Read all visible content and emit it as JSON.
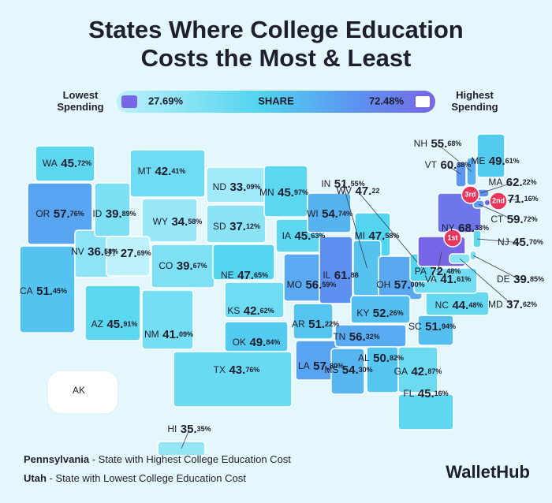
{
  "title_lines": [
    "States Where College Education",
    "Costs the Most & Least"
  ],
  "legend": {
    "low_label": "Lowest Spending",
    "low_value": 27.69,
    "low_value_label": "27.69%",
    "middle_label": "SHARE",
    "high_value": 72.48,
    "high_value_label": "72.48%",
    "high_label": "Highest Spending"
  },
  "states": [
    {
      "abbr": "WA",
      "value": 45.72,
      "value_label": "45.72%"
    },
    {
      "abbr": "OR",
      "value": 57.76,
      "value_label": "57.76%"
    },
    {
      "abbr": "CA",
      "value": 51.45,
      "value_label": "51.45%"
    },
    {
      "abbr": "NV",
      "value": 36.58,
      "value_label": "36.58%"
    },
    {
      "abbr": "ID",
      "value": 39.89,
      "value_label": "39.89%"
    },
    {
      "abbr": "MT",
      "value": 42.41,
      "value_label": "42.41%"
    },
    {
      "abbr": "WY",
      "value": 34.58,
      "value_label": "34.58%"
    },
    {
      "abbr": "UT",
      "value": 27.69,
      "value_label": "27.69%"
    },
    {
      "abbr": "AZ",
      "value": 45.91,
      "value_label": "45.91%"
    },
    {
      "abbr": "CO",
      "value": 39.67,
      "value_label": "39.67%"
    },
    {
      "abbr": "NM",
      "value": 41.09,
      "value_label": "41.09%"
    },
    {
      "abbr": "ND",
      "value": 33.09,
      "value_label": "33.09%"
    },
    {
      "abbr": "SD",
      "value": 37.12,
      "value_label": "37.12%"
    },
    {
      "abbr": "NE",
      "value": 47.65,
      "value_label": "47.65%"
    },
    {
      "abbr": "KS",
      "value": 42.62,
      "value_label": "42.62%"
    },
    {
      "abbr": "OK",
      "value": 49.84,
      "value_label": "49.84%"
    },
    {
      "abbr": "TX",
      "value": 43.76,
      "value_label": "43.76%"
    },
    {
      "abbr": "MN",
      "value": 45.97,
      "value_label": "45.97%"
    },
    {
      "abbr": "IA",
      "value": 45.63,
      "value_label": "45.63%"
    },
    {
      "abbr": "MO",
      "value": 56.59,
      "value_label": "56.59%"
    },
    {
      "abbr": "AR",
      "value": 51.22,
      "value_label": "51.22%"
    },
    {
      "abbr": "LA",
      "value": 57.8,
      "value_label": "57.80%"
    },
    {
      "abbr": "WI",
      "value": 54.74,
      "value_label": "54.74%"
    },
    {
      "abbr": "IL",
      "value": 61.88,
      "value_label": "61.88"
    },
    {
      "abbr": "MI",
      "value": 47.58,
      "value_label": "47.58%"
    },
    {
      "abbr": "IN",
      "value": 51.55,
      "value_label": "51.55%"
    },
    {
      "abbr": "OH",
      "value": 57.0,
      "value_label": "57.00%"
    },
    {
      "abbr": "KY",
      "value": 52.26,
      "value_label": "52.26%"
    },
    {
      "abbr": "TN",
      "value": 56.32,
      "value_label": "56.32%"
    },
    {
      "abbr": "MS",
      "value": 54.3,
      "value_label": "54.30%"
    },
    {
      "abbr": "AL",
      "value": 50.82,
      "value_label": "50.82%"
    },
    {
      "abbr": "GA",
      "value": 42.87,
      "value_label": "42.87%"
    },
    {
      "abbr": "FL",
      "value": 45.16,
      "value_label": "45.16%"
    },
    {
      "abbr": "SC",
      "value": 51.94,
      "value_label": "51.94%"
    },
    {
      "abbr": "NC",
      "value": 44.48,
      "value_label": "44.48%"
    },
    {
      "abbr": "VA",
      "value": 41.61,
      "value_label": "41.61%"
    },
    {
      "abbr": "WV",
      "value": 47.22,
      "value_label": "47.22"
    },
    {
      "abbr": "PA",
      "value": 72.48,
      "value_label": "72.48%",
      "rank": "1st"
    },
    {
      "abbr": "NY",
      "value": 68.33,
      "value_label": "68.33%",
      "rank": "3rd"
    },
    {
      "abbr": "NH",
      "value": 55.68,
      "value_label": "55.68%"
    },
    {
      "abbr": "VT",
      "value": 60.38,
      "value_label": "60.38%"
    },
    {
      "abbr": "ME",
      "value": 49.61,
      "value_label": "49.61%"
    },
    {
      "abbr": "MA",
      "value": 62.22,
      "value_label": "62.22%"
    },
    {
      "abbr": "RI",
      "value": 71.16,
      "value_label": "71.16%",
      "rank": "2nd"
    },
    {
      "abbr": "CT",
      "value": 59.72,
      "value_label": "59.72%"
    },
    {
      "abbr": "NJ",
      "value": 45.7,
      "value_label": "45.70%"
    },
    {
      "abbr": "DE",
      "value": 39.85,
      "value_label": "39.85%"
    },
    {
      "abbr": "MD",
      "value": 37.62,
      "value_label": "37.62%"
    },
    {
      "abbr": "HI",
      "value": 35.35,
      "value_label": "35.35%"
    }
  ],
  "unrated_state": "AK",
  "notes": [
    {
      "name": "Pennsylvania",
      "text": " - State with Highest College Education Cost"
    },
    {
      "name": "Utah",
      "text": " - State with Lowest College Education Cost"
    }
  ],
  "brand": "WalletHub"
}
